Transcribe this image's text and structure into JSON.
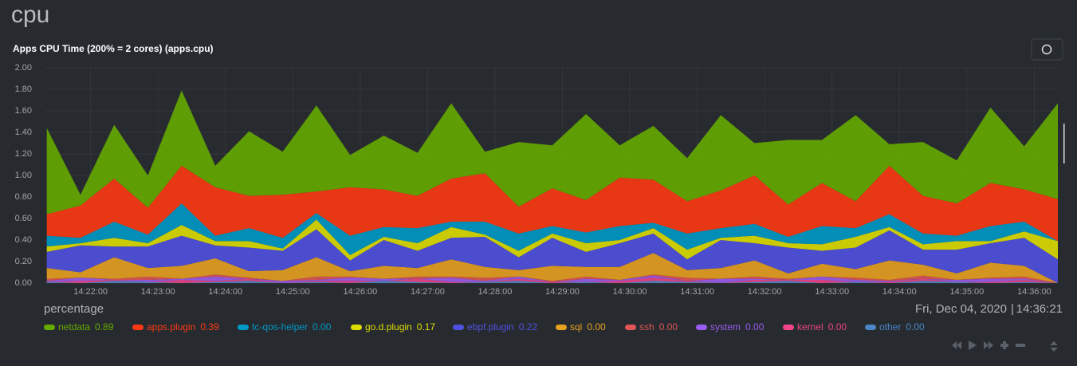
{
  "heading": "cpu",
  "chart_data": {
    "type": "stacked-area",
    "title": "Apps CPU Time (200% = 2 cores) (apps.cpu)",
    "units": "percentage",
    "date": "Fri, Dec 04, 2020",
    "time": "14:36:21",
    "x": [
      861.35,
      861.85,
      862.35,
      862.85,
      863.35,
      863.85,
      864.35,
      864.85,
      865.35,
      865.85,
      866.35,
      866.85,
      867.35,
      867.85,
      868.35,
      868.85,
      869.35,
      869.85,
      870.35,
      870.85,
      871.35,
      871.85,
      872.35,
      872.85,
      873.35,
      873.85,
      874.35,
      874.85,
      875.35,
      875.85,
      876.35
    ],
    "xlim": [
      861.33,
      876.35
    ],
    "xticks": [
      {
        "value": 862,
        "label": "14:22:00"
      },
      {
        "value": 863,
        "label": "14:23:00"
      },
      {
        "value": 864,
        "label": "14:24:00"
      },
      {
        "value": 865,
        "label": "14:25:00"
      },
      {
        "value": 866,
        "label": "14:26:00"
      },
      {
        "value": 867,
        "label": "14:27:00"
      },
      {
        "value": 868,
        "label": "14:28:00"
      },
      {
        "value": 869,
        "label": "14:29:00"
      },
      {
        "value": 870,
        "label": "14:30:00"
      },
      {
        "value": 871,
        "label": "14:31:00"
      },
      {
        "value": 872,
        "label": "14:32:00"
      },
      {
        "value": 873,
        "label": "14:33:00"
      },
      {
        "value": 874,
        "label": "14:34:00"
      },
      {
        "value": 875,
        "label": "14:35:00"
      },
      {
        "value": 876,
        "label": "14:36:00"
      }
    ],
    "ylim": [
      0,
      2
    ],
    "yticks": [
      {
        "value": 0,
        "label": "0.00"
      },
      {
        "value": 0.2,
        "label": "0.20"
      },
      {
        "value": 0.4,
        "label": "0.40"
      },
      {
        "value": 0.6,
        "label": "0.60"
      },
      {
        "value": 0.8,
        "label": "0.80"
      },
      {
        "value": 1,
        "label": "1.00"
      },
      {
        "value": 1.2,
        "label": "1.20"
      },
      {
        "value": 1.4,
        "label": "1.40"
      },
      {
        "value": 1.6,
        "label": "1.60"
      },
      {
        "value": 1.8,
        "label": "1.80"
      },
      {
        "value": 2,
        "label": "2.00"
      }
    ],
    "grid": true,
    "series": [
      {
        "name": "netdata",
        "color": "#66aa00",
        "current": "0.89",
        "values": [
          0.8,
          0.1,
          0.5,
          0.3,
          0.7,
          0.2,
          0.6,
          0.4,
          0.8,
          0.3,
          0.5,
          0.4,
          0.7,
          0.2,
          0.6,
          0.4,
          0.8,
          0.3,
          0.5,
          0.4,
          0.7,
          0.3,
          0.6,
          0.4,
          0.8,
          0.2,
          0.5,
          0.4,
          0.7,
          0.4,
          0.89
        ]
      },
      {
        "name": "apps.plugin",
        "color": "#fe3912",
        "current": "0.39",
        "values": [
          0.2,
          0.3,
          0.4,
          0.25,
          0.35,
          0.45,
          0.3,
          0.4,
          0.2,
          0.45,
          0.35,
          0.3,
          0.4,
          0.45,
          0.25,
          0.35,
          0.3,
          0.45,
          0.4,
          0.3,
          0.35,
          0.45,
          0.3,
          0.4,
          0.25,
          0.45,
          0.35,
          0.3,
          0.4,
          0.3,
          0.39
        ]
      },
      {
        "name": "tc-qos-helper",
        "color": "#0099c6",
        "current": "0.00",
        "values": [
          0.1,
          0.05,
          0.15,
          0.08,
          0.2,
          0.05,
          0.12,
          0.1,
          0.06,
          0.18,
          0.09,
          0.14,
          0.05,
          0.12,
          0.16,
          0.07,
          0.1,
          0.13,
          0.05,
          0.15,
          0.09,
          0.11,
          0.06,
          0.17,
          0.08,
          0.12,
          0.1,
          0.05,
          0.14,
          0.09,
          0
        ]
      },
      {
        "name": "go.d.plugin",
        "color": "#dddd00",
        "current": "0.17",
        "values": [
          0.05,
          0.02,
          0.08,
          0.03,
          0.1,
          0.04,
          0.06,
          0.02,
          0.09,
          0.05,
          0.03,
          0.07,
          0.1,
          0.02,
          0.06,
          0.04,
          0.08,
          0.03,
          0.05,
          0.09,
          0.02,
          0.07,
          0.04,
          0.06,
          0.1,
          0.03,
          0.05,
          0.08,
          0.02,
          0.06,
          0.17
        ]
      },
      {
        "name": "ebpf.plugin",
        "color": "#5050e0",
        "current": "0.22",
        "values": [
          0.15,
          0.25,
          0.1,
          0.2,
          0.28,
          0.12,
          0.22,
          0.18,
          0.26,
          0.1,
          0.24,
          0.16,
          0.2,
          0.28,
          0.12,
          0.26,
          0.14,
          0.22,
          0.18,
          0.1,
          0.26,
          0.16,
          0.24,
          0.12,
          0.2,
          0.28,
          0.14,
          0.22,
          0.18,
          0.26,
          0.22
        ]
      },
      {
        "name": "sql",
        "color": "#e8a020",
        "current": "0.00",
        "values": [
          0.1,
          0.05,
          0.2,
          0.08,
          0.12,
          0.15,
          0.06,
          0.1,
          0.18,
          0.05,
          0.12,
          0.08,
          0.16,
          0.1,
          0.06,
          0.14,
          0.09,
          0.12,
          0.2,
          0.07,
          0.1,
          0.15,
          0.05,
          0.12,
          0.08,
          0.18,
          0.1,
          0.06,
          0.14,
          0.1,
          0
        ]
      },
      {
        "name": "ssh",
        "color": "#e05555",
        "current": "0.00",
        "values": [
          0.02,
          0,
          0.01,
          0.03,
          0,
          0.02,
          0.01,
          0,
          0.03,
          0.01,
          0,
          0.02,
          0.01,
          0.03,
          0,
          0.01,
          0.02,
          0,
          0.01,
          0.03,
          0,
          0.02,
          0.01,
          0,
          0.02,
          0.01,
          0.03,
          0,
          0.01,
          0.02,
          0
        ]
      },
      {
        "name": "system",
        "color": "#9a5cf0",
        "current": "0.00",
        "values": [
          0.01,
          0.03,
          0,
          0.02,
          0.01,
          0.04,
          0,
          0.02,
          0.01,
          0.03,
          0.02,
          0,
          0.04,
          0.01,
          0.02,
          0,
          0.03,
          0.01,
          0.02,
          0,
          0.04,
          0.01,
          0,
          0.03,
          0.02,
          0.01,
          0,
          0.02,
          0.03,
          0.01,
          0
        ]
      },
      {
        "name": "kernel",
        "color": "#ee4488",
        "current": "0.00",
        "values": [
          0,
          0.02,
          0.01,
          0,
          0.03,
          0.01,
          0.02,
          0,
          0.01,
          0.02,
          0,
          0.03,
          0.01,
          0,
          0.02,
          0.01,
          0,
          0.02,
          0.03,
          0.01,
          0,
          0.02,
          0.01,
          0.03,
          0,
          0.01,
          0.02,
          0,
          0.01,
          0.02,
          0
        ]
      },
      {
        "name": "other",
        "color": "#4a86c8",
        "current": "0.00",
        "values": [
          0.01,
          0,
          0.02,
          0.01,
          0,
          0.01,
          0.02,
          0,
          0.01,
          0,
          0.02,
          0.01,
          0,
          0.01,
          0.02,
          0,
          0.01,
          0,
          0.02,
          0.01,
          0,
          0.01,
          0.02,
          0,
          0.01,
          0,
          0.02,
          0.01,
          0,
          0.01,
          0
        ]
      }
    ]
  }
}
